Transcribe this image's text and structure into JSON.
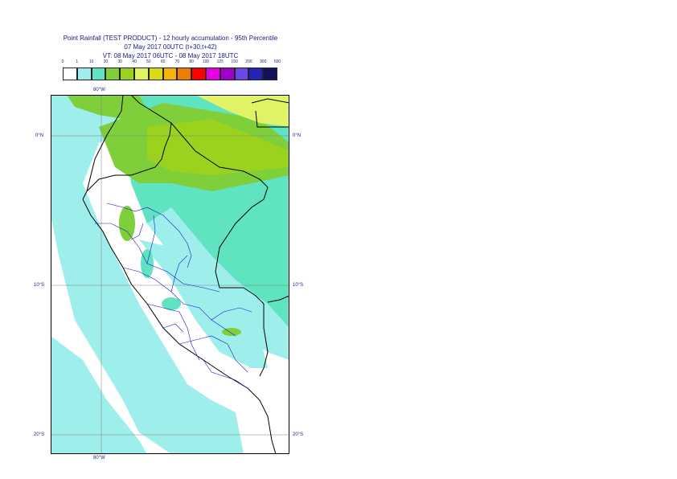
{
  "header": {
    "title": "Point Rainfall (TEST PRODUCT) - 12 hourly accumulation - 95th Percentile",
    "subtitle1": "07 May 2017 00UTC (t+30,t+42)",
    "subtitle2": "VT: 08 May 2017 06UTC - 08 May 2017 18UTC"
  },
  "legend": {
    "ticks": [
      "0",
      "1",
      "10",
      "20",
      "30",
      "40",
      "50",
      "60",
      "70",
      "80",
      "100",
      "125",
      "150",
      "200",
      "300",
      "500"
    ],
    "colors": [
      "#ffffff",
      "#9eeeeb",
      "#5fe3c0",
      "#7fcf3a",
      "#9bd21d",
      "#e0f266",
      "#dada18",
      "#f5b400",
      "#f07c00",
      "#ff0000",
      "#e600e6",
      "#a000c8",
      "#6a47e8",
      "#2323b4",
      "#12125a"
    ]
  },
  "axes": {
    "top_lon_label": "80°W",
    "bottom_lon_label": "80°W",
    "lat_labels": [
      "0°N",
      "10°S",
      "20°S"
    ]
  },
  "colors": {
    "ocean_light": "#9eeeeb",
    "land_med": "#5fe3c0",
    "green": "#7fcf3a",
    "yellowgreen": "#9bd21d",
    "yellow": "#e0f266",
    "border_black": "#000000",
    "border_blue": "#1a1acc",
    "grid": "#808080"
  }
}
